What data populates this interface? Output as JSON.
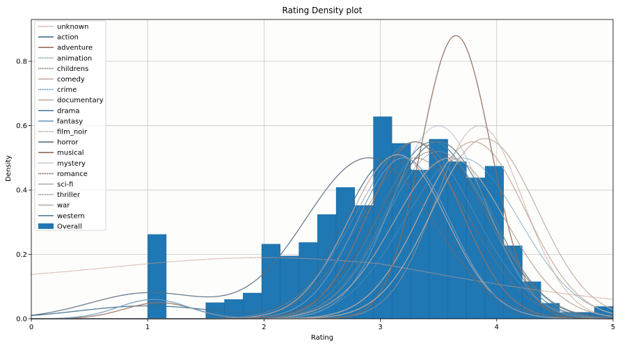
{
  "chart_data": {
    "type": "bar",
    "title": "Rating Density plot",
    "xlabel": "Rating",
    "ylabel": "Density",
    "xlim": [
      0,
      5
    ],
    "ylim": [
      0,
      0.93
    ],
    "xticks": [
      "0",
      "1",
      "2",
      "3",
      "4",
      "5"
    ],
    "yticks": [
      "0.0",
      "0.2",
      "0.4",
      "0.6",
      "0.8"
    ],
    "grid": true,
    "legend_position": "upper-left",
    "histogram": {
      "name": "Overall",
      "color": "#1f77b4",
      "bin_width": 0.16,
      "bins": [
        {
          "x0": 1.0,
          "density": 0.262
        },
        {
          "x0": 1.5,
          "density": 0.05
        },
        {
          "x0": 1.66,
          "density": 0.06
        },
        {
          "x0": 1.82,
          "density": 0.08
        },
        {
          "x0": 1.98,
          "density": 0.232
        },
        {
          "x0": 2.14,
          "density": 0.195
        },
        {
          "x0": 2.3,
          "density": 0.237
        },
        {
          "x0": 2.46,
          "density": 0.324
        },
        {
          "x0": 2.62,
          "density": 0.408
        },
        {
          "x0": 2.78,
          "density": 0.352
        },
        {
          "x0": 2.94,
          "density": 0.628
        },
        {
          "x0": 3.1,
          "density": 0.545
        },
        {
          "x0": 3.26,
          "density": 0.462
        },
        {
          "x0": 3.42,
          "density": 0.558
        },
        {
          "x0": 3.58,
          "density": 0.488
        },
        {
          "x0": 3.74,
          "density": 0.438
        },
        {
          "x0": 3.9,
          "density": 0.474
        },
        {
          "x0": 4.06,
          "density": 0.227
        },
        {
          "x0": 4.22,
          "density": 0.115
        },
        {
          "x0": 4.38,
          "density": 0.048
        },
        {
          "x0": 4.54,
          "density": 0.02
        },
        {
          "x0": 4.7,
          "density": 0.02
        },
        {
          "x0": 4.84,
          "density": 0.038
        }
      ]
    },
    "series": [
      {
        "name": "unknown",
        "color": "#c49a8e",
        "dotted": true,
        "peaks": [
          [
            1.0,
            0.2,
            0.1
          ]
        ],
        "baseline": 0.0
      },
      {
        "name": "action",
        "color": "#3b6e8f",
        "peaks": [
          [
            3.1,
            0.42,
            0.5
          ],
          [
            1.0,
            0.6,
            0.04
          ]
        ]
      },
      {
        "name": "adventure",
        "color": "#9a7060",
        "peaks": [
          [
            3.3,
            0.4,
            0.55
          ],
          [
            1.1,
            0.3,
            0.05
          ]
        ]
      },
      {
        "name": "animation",
        "color": "#7a9aaa",
        "dotted": true,
        "peaks": [
          [
            3.5,
            0.45,
            0.52
          ]
        ]
      },
      {
        "name": "childrens",
        "color": "#8a6d5a",
        "dotted": true,
        "peaks": [
          [
            3.3,
            0.48,
            0.5
          ]
        ]
      },
      {
        "name": "comedy",
        "color": "#c1a59a",
        "peaks": [
          [
            3.15,
            0.42,
            0.51
          ]
        ]
      },
      {
        "name": "crime",
        "color": "#5a8fb0",
        "dotted": true,
        "peaks": [
          [
            3.7,
            0.5,
            0.5
          ]
        ]
      },
      {
        "name": "documentary",
        "color": "#c4ab9e",
        "peaks": [
          [
            3.8,
            0.45,
            0.55
          ]
        ]
      },
      {
        "name": "drama",
        "color": "#4a7fa0",
        "peaks": [
          [
            3.45,
            0.45,
            0.55
          ]
        ]
      },
      {
        "name": "fantasy",
        "color": "#6a9ac0",
        "peaks": [
          [
            3.2,
            0.4,
            0.5
          ],
          [
            1.05,
            0.3,
            0.06
          ]
        ]
      },
      {
        "name": "film_noir",
        "color": "#b89a8e",
        "dotted": true,
        "peaks": [
          [
            3.85,
            0.38,
            0.6
          ]
        ]
      },
      {
        "name": "horror",
        "color": "#5a6e80",
        "peaks": [
          [
            2.9,
            0.55,
            0.5
          ],
          [
            1.0,
            0.5,
            0.08
          ]
        ]
      },
      {
        "name": "musical",
        "color": "#8a6a5a",
        "peaks": [
          [
            3.65,
            0.3,
            0.88
          ]
        ]
      },
      {
        "name": "mystery",
        "color": "#9aabb8",
        "dotted": true,
        "peaks": [
          [
            3.5,
            0.4,
            0.6
          ]
        ]
      },
      {
        "name": "romance",
        "color": "#7a5a4a",
        "dotted": true,
        "peaks": [
          [
            3.45,
            0.48,
            0.52
          ]
        ]
      },
      {
        "name": "sci-fi",
        "color": "#b8a49a",
        "peaks": [
          [
            3.6,
            0.48,
            0.5
          ]
        ]
      },
      {
        "name": "thriller",
        "color": "#7a8a9a",
        "dotted": true,
        "peaks": [
          [
            3.3,
            0.5,
            0.55
          ]
        ]
      },
      {
        "name": "war",
        "color": "#c0ada0",
        "peaks": [
          [
            3.9,
            0.45,
            0.56
          ]
        ]
      },
      {
        "name": "western",
        "color": "#5a7a90",
        "peaks": [
          [
            3.5,
            0.45,
            0.55
          ]
        ]
      }
    ],
    "legend": [
      "unknown",
      "action",
      "adventure",
      "animation",
      "childrens",
      "comedy",
      "crime",
      "documentary",
      "drama",
      "fantasy",
      "film_noir",
      "horror",
      "musical",
      "mystery",
      "romance",
      "sci-fi",
      "thriller",
      "war",
      "western",
      "Overall"
    ]
  }
}
